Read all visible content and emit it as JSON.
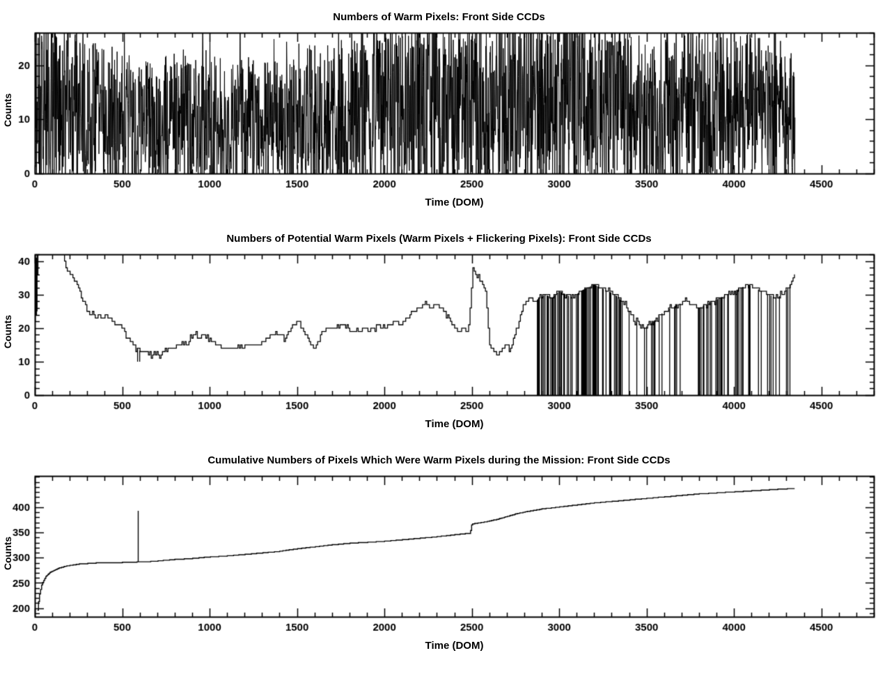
{
  "page": {
    "bg": "#ffffff",
    "fg": "#000000"
  },
  "chart_data": [
    {
      "type": "line",
      "title": "Numbers of Warm Pixels: Front Side CCDs",
      "xlabel": "Time (DOM)",
      "ylabel": "Counts",
      "xlim": [
        0,
        4800
      ],
      "ylim": [
        0,
        26
      ],
      "xticks": [
        0,
        500,
        1000,
        1500,
        2000,
        2500,
        3000,
        3500,
        4000,
        4500
      ],
      "yticks": [
        0,
        10,
        20
      ],
      "x_minor_step": 100,
      "y_minor_step": 2,
      "grid": false,
      "legend": "none",
      "series": {
        "name": "warm-pixel-counts",
        "render": "noise",
        "x_start": 2,
        "x_end": 4350,
        "sample_step": 1.6,
        "seed": 20240,
        "amplitude_factor": 1.35,
        "spike_chance": 0.09,
        "spike_max": 10,
        "trend": [
          [
            0,
            13
          ],
          [
            150,
            12
          ],
          [
            300,
            10.5
          ],
          [
            500,
            9.5
          ],
          [
            700,
            9
          ],
          [
            900,
            10
          ],
          [
            1100,
            9.5
          ],
          [
            1300,
            9
          ],
          [
            1500,
            10
          ],
          [
            1700,
            10.5
          ],
          [
            1900,
            11
          ],
          [
            2100,
            12
          ],
          [
            2300,
            12.5
          ],
          [
            2500,
            12
          ],
          [
            2700,
            12.5
          ],
          [
            2900,
            13
          ],
          [
            3100,
            13.5
          ],
          [
            3300,
            12
          ],
          [
            3500,
            11
          ],
          [
            3700,
            11.5
          ],
          [
            3900,
            12
          ],
          [
            4100,
            11
          ],
          [
            4250,
            10
          ],
          [
            4350,
            9
          ]
        ]
      }
    },
    {
      "type": "line",
      "title": "Numbers of Potential Warm Pixels (Warm Pixels + Flickering Pixels): Front Side CCDs",
      "xlabel": "Time (DOM)",
      "ylabel": "Counts",
      "xlim": [
        0,
        4800
      ],
      "ylim": [
        0,
        42
      ],
      "xticks": [
        0,
        500,
        1000,
        1500,
        2000,
        2500,
        3000,
        3500,
        4000,
        4500
      ],
      "yticks": [
        0,
        10,
        20,
        30,
        40
      ],
      "x_minor_step": 100,
      "y_minor_step": 2,
      "grid": false,
      "legend": "none",
      "series": {
        "name": "potential-warm-pixel-counts",
        "render": "steps",
        "sample_step": 8,
        "seed": 77,
        "jitter_chance": 0.18,
        "jitter_amp": 1,
        "dropout_step": 4,
        "keypoints": [
          [
            2,
            24
          ],
          [
            4,
            42
          ],
          [
            6,
            23
          ],
          [
            9,
            40
          ],
          [
            12,
            26
          ],
          [
            15,
            45
          ],
          [
            160,
            45
          ],
          [
            168,
            41
          ],
          [
            176,
            38
          ],
          [
            190,
            37
          ],
          [
            205,
            36
          ],
          [
            220,
            35
          ],
          [
            240,
            33
          ],
          [
            255,
            31
          ],
          [
            270,
            29
          ],
          [
            285,
            27
          ],
          [
            300,
            25
          ],
          [
            315,
            24
          ],
          [
            330,
            25
          ],
          [
            345,
            23
          ],
          [
            365,
            24
          ],
          [
            385,
            23
          ],
          [
            405,
            24
          ],
          [
            425,
            23
          ],
          [
            445,
            22
          ],
          [
            465,
            21
          ],
          [
            485,
            21
          ],
          [
            505,
            20
          ],
          [
            525,
            18
          ],
          [
            545,
            16
          ],
          [
            565,
            15
          ],
          [
            585,
            14
          ],
          [
            605,
            13
          ],
          [
            630,
            13
          ],
          [
            660,
            12
          ],
          [
            700,
            12
          ],
          [
            740,
            13
          ],
          [
            780,
            14
          ],
          [
            820,
            15
          ],
          [
            850,
            16
          ],
          [
            870,
            15
          ],
          [
            895,
            17
          ],
          [
            915,
            18
          ],
          [
            940,
            17
          ],
          [
            965,
            18
          ],
          [
            990,
            17
          ],
          [
            1015,
            16
          ],
          [
            1045,
            15
          ],
          [
            1080,
            14
          ],
          [
            1120,
            14
          ],
          [
            1170,
            14
          ],
          [
            1220,
            15
          ],
          [
            1270,
            15
          ],
          [
            1310,
            16
          ],
          [
            1350,
            18
          ],
          [
            1380,
            19
          ],
          [
            1405,
            18
          ],
          [
            1430,
            17
          ],
          [
            1455,
            19
          ],
          [
            1480,
            21
          ],
          [
            1505,
            22
          ],
          [
            1525,
            21
          ],
          [
            1550,
            18
          ],
          [
            1575,
            15
          ],
          [
            1600,
            14
          ],
          [
            1625,
            17
          ],
          [
            1650,
            19
          ],
          [
            1680,
            20
          ],
          [
            1710,
            20
          ],
          [
            1745,
            21
          ],
          [
            1780,
            20
          ],
          [
            1815,
            19
          ],
          [
            1850,
            19
          ],
          [
            1885,
            20
          ],
          [
            1920,
            19
          ],
          [
            1955,
            21
          ],
          [
            1990,
            20
          ],
          [
            2025,
            21
          ],
          [
            2060,
            22
          ],
          [
            2095,
            21
          ],
          [
            2130,
            23
          ],
          [
            2165,
            25
          ],
          [
            2200,
            26
          ],
          [
            2235,
            27
          ],
          [
            2265,
            26
          ],
          [
            2295,
            27
          ],
          [
            2330,
            26
          ],
          [
            2360,
            24
          ],
          [
            2390,
            21
          ],
          [
            2420,
            19
          ],
          [
            2450,
            20
          ],
          [
            2480,
            19
          ],
          [
            2505,
            38
          ],
          [
            2520,
            37
          ],
          [
            2540,
            35
          ],
          [
            2560,
            34
          ],
          [
            2580,
            31
          ],
          [
            2600,
            15
          ],
          [
            2625,
            13
          ],
          [
            2650,
            12
          ],
          [
            2675,
            14
          ],
          [
            2700,
            15
          ],
          [
            2725,
            14
          ],
          [
            2750,
            19
          ],
          [
            2775,
            24
          ],
          [
            2800,
            27
          ],
          [
            2830,
            29
          ],
          [
            2860,
            28
          ],
          [
            2890,
            29
          ],
          [
            2920,
            30
          ],
          [
            2960,
            29
          ],
          [
            3000,
            31
          ],
          [
            3040,
            30
          ],
          [
            3080,
            29
          ],
          [
            3120,
            31
          ],
          [
            3160,
            32
          ],
          [
            3200,
            33
          ],
          [
            3240,
            32
          ],
          [
            3280,
            31
          ],
          [
            3320,
            30
          ],
          [
            3360,
            28
          ],
          [
            3400,
            25
          ],
          [
            3440,
            22
          ],
          [
            3480,
            20
          ],
          [
            3520,
            21
          ],
          [
            3560,
            23
          ],
          [
            3600,
            25
          ],
          [
            3640,
            26
          ],
          [
            3680,
            27
          ],
          [
            3720,
            28
          ],
          [
            3760,
            27
          ],
          [
            3800,
            26
          ],
          [
            3840,
            27
          ],
          [
            3880,
            28
          ],
          [
            3920,
            29
          ],
          [
            3960,
            30
          ],
          [
            4000,
            31
          ],
          [
            4040,
            32
          ],
          [
            4080,
            33
          ],
          [
            4120,
            32
          ],
          [
            4160,
            31
          ],
          [
            4200,
            30
          ],
          [
            4240,
            29
          ],
          [
            4280,
            30
          ],
          [
            4310,
            32
          ],
          [
            4330,
            34
          ],
          [
            4350,
            36
          ]
        ],
        "left_spikes": [
          {
            "x": 3,
            "from": 22,
            "to": 42
          },
          {
            "x": 8,
            "from": 24,
            "to": 41
          },
          {
            "x": 13,
            "from": 25,
            "to": 42
          }
        ],
        "extra_drops": [
          {
            "x": 588,
            "to": 10
          },
          {
            "x": 600,
            "to": 10
          }
        ],
        "dropout_regions": [
          {
            "start": 2875,
            "end": 3010,
            "density": 0.45
          },
          {
            "start": 3010,
            "end": 3120,
            "density": 0.35
          },
          {
            "start": 3120,
            "end": 3360,
            "density": 0.5
          },
          {
            "start": 3400,
            "end": 3560,
            "density": 0.3
          },
          {
            "start": 3560,
            "end": 3780,
            "density": 0.22
          },
          {
            "start": 3780,
            "end": 4000,
            "density": 0.28
          },
          {
            "start": 4000,
            "end": 4180,
            "density": 0.35
          },
          {
            "start": 4180,
            "end": 4320,
            "density": 0.3
          }
        ]
      }
    },
    {
      "type": "line",
      "title": "Cumulative Numbers of Pixels Which Were Warm Pixels during the Mission: Front Side CCDs",
      "xlabel": "Time (DOM)",
      "ylabel": "Counts",
      "xlim": [
        0,
        4800
      ],
      "ylim": [
        183,
        462
      ],
      "xticks": [
        0,
        500,
        1000,
        1500,
        2000,
        2500,
        3000,
        3500,
        4000,
        4500
      ],
      "yticks": [
        200,
        250,
        300,
        350,
        400
      ],
      "x_minor_step": 100,
      "y_minor_step": 10,
      "grid": false,
      "legend": "none",
      "series": {
        "name": "cumulative-warm-pixel-counts",
        "render": "cumulative",
        "sample_step": 6,
        "seed": 5,
        "spike": {
          "x": 590,
          "value": 393
        },
        "keypoints": [
          [
            15,
            196
          ],
          [
            25,
            225
          ],
          [
            40,
            248
          ],
          [
            60,
            262
          ],
          [
            90,
            272
          ],
          [
            130,
            279
          ],
          [
            180,
            284
          ],
          [
            250,
            288
          ],
          [
            350,
            290
          ],
          [
            500,
            291
          ],
          [
            585,
            292
          ],
          [
            620,
            292
          ],
          [
            700,
            294
          ],
          [
            800,
            297
          ],
          [
            900,
            299
          ],
          [
            1000,
            302
          ],
          [
            1100,
            304
          ],
          [
            1200,
            307
          ],
          [
            1300,
            310
          ],
          [
            1400,
            313
          ],
          [
            1450,
            316
          ],
          [
            1500,
            318
          ],
          [
            1600,
            322
          ],
          [
            1700,
            326
          ],
          [
            1800,
            329
          ],
          [
            1900,
            331
          ],
          [
            2000,
            333
          ],
          [
            2100,
            336
          ],
          [
            2200,
            339
          ],
          [
            2300,
            342
          ],
          [
            2400,
            346
          ],
          [
            2490,
            349
          ],
          [
            2500,
            367
          ],
          [
            2550,
            370
          ],
          [
            2600,
            373
          ],
          [
            2650,
            377
          ],
          [
            2700,
            382
          ],
          [
            2750,
            387
          ],
          [
            2800,
            391
          ],
          [
            2850,
            394
          ],
          [
            2900,
            397
          ],
          [
            2950,
            399
          ],
          [
            3000,
            401
          ],
          [
            3100,
            405
          ],
          [
            3200,
            409
          ],
          [
            3300,
            412
          ],
          [
            3400,
            415
          ],
          [
            3500,
            418
          ],
          [
            3600,
            421
          ],
          [
            3700,
            424
          ],
          [
            3800,
            427
          ],
          [
            3900,
            429
          ],
          [
            4000,
            431
          ],
          [
            4100,
            433
          ],
          [
            4200,
            435
          ],
          [
            4300,
            437
          ],
          [
            4350,
            438
          ]
        ]
      }
    }
  ]
}
